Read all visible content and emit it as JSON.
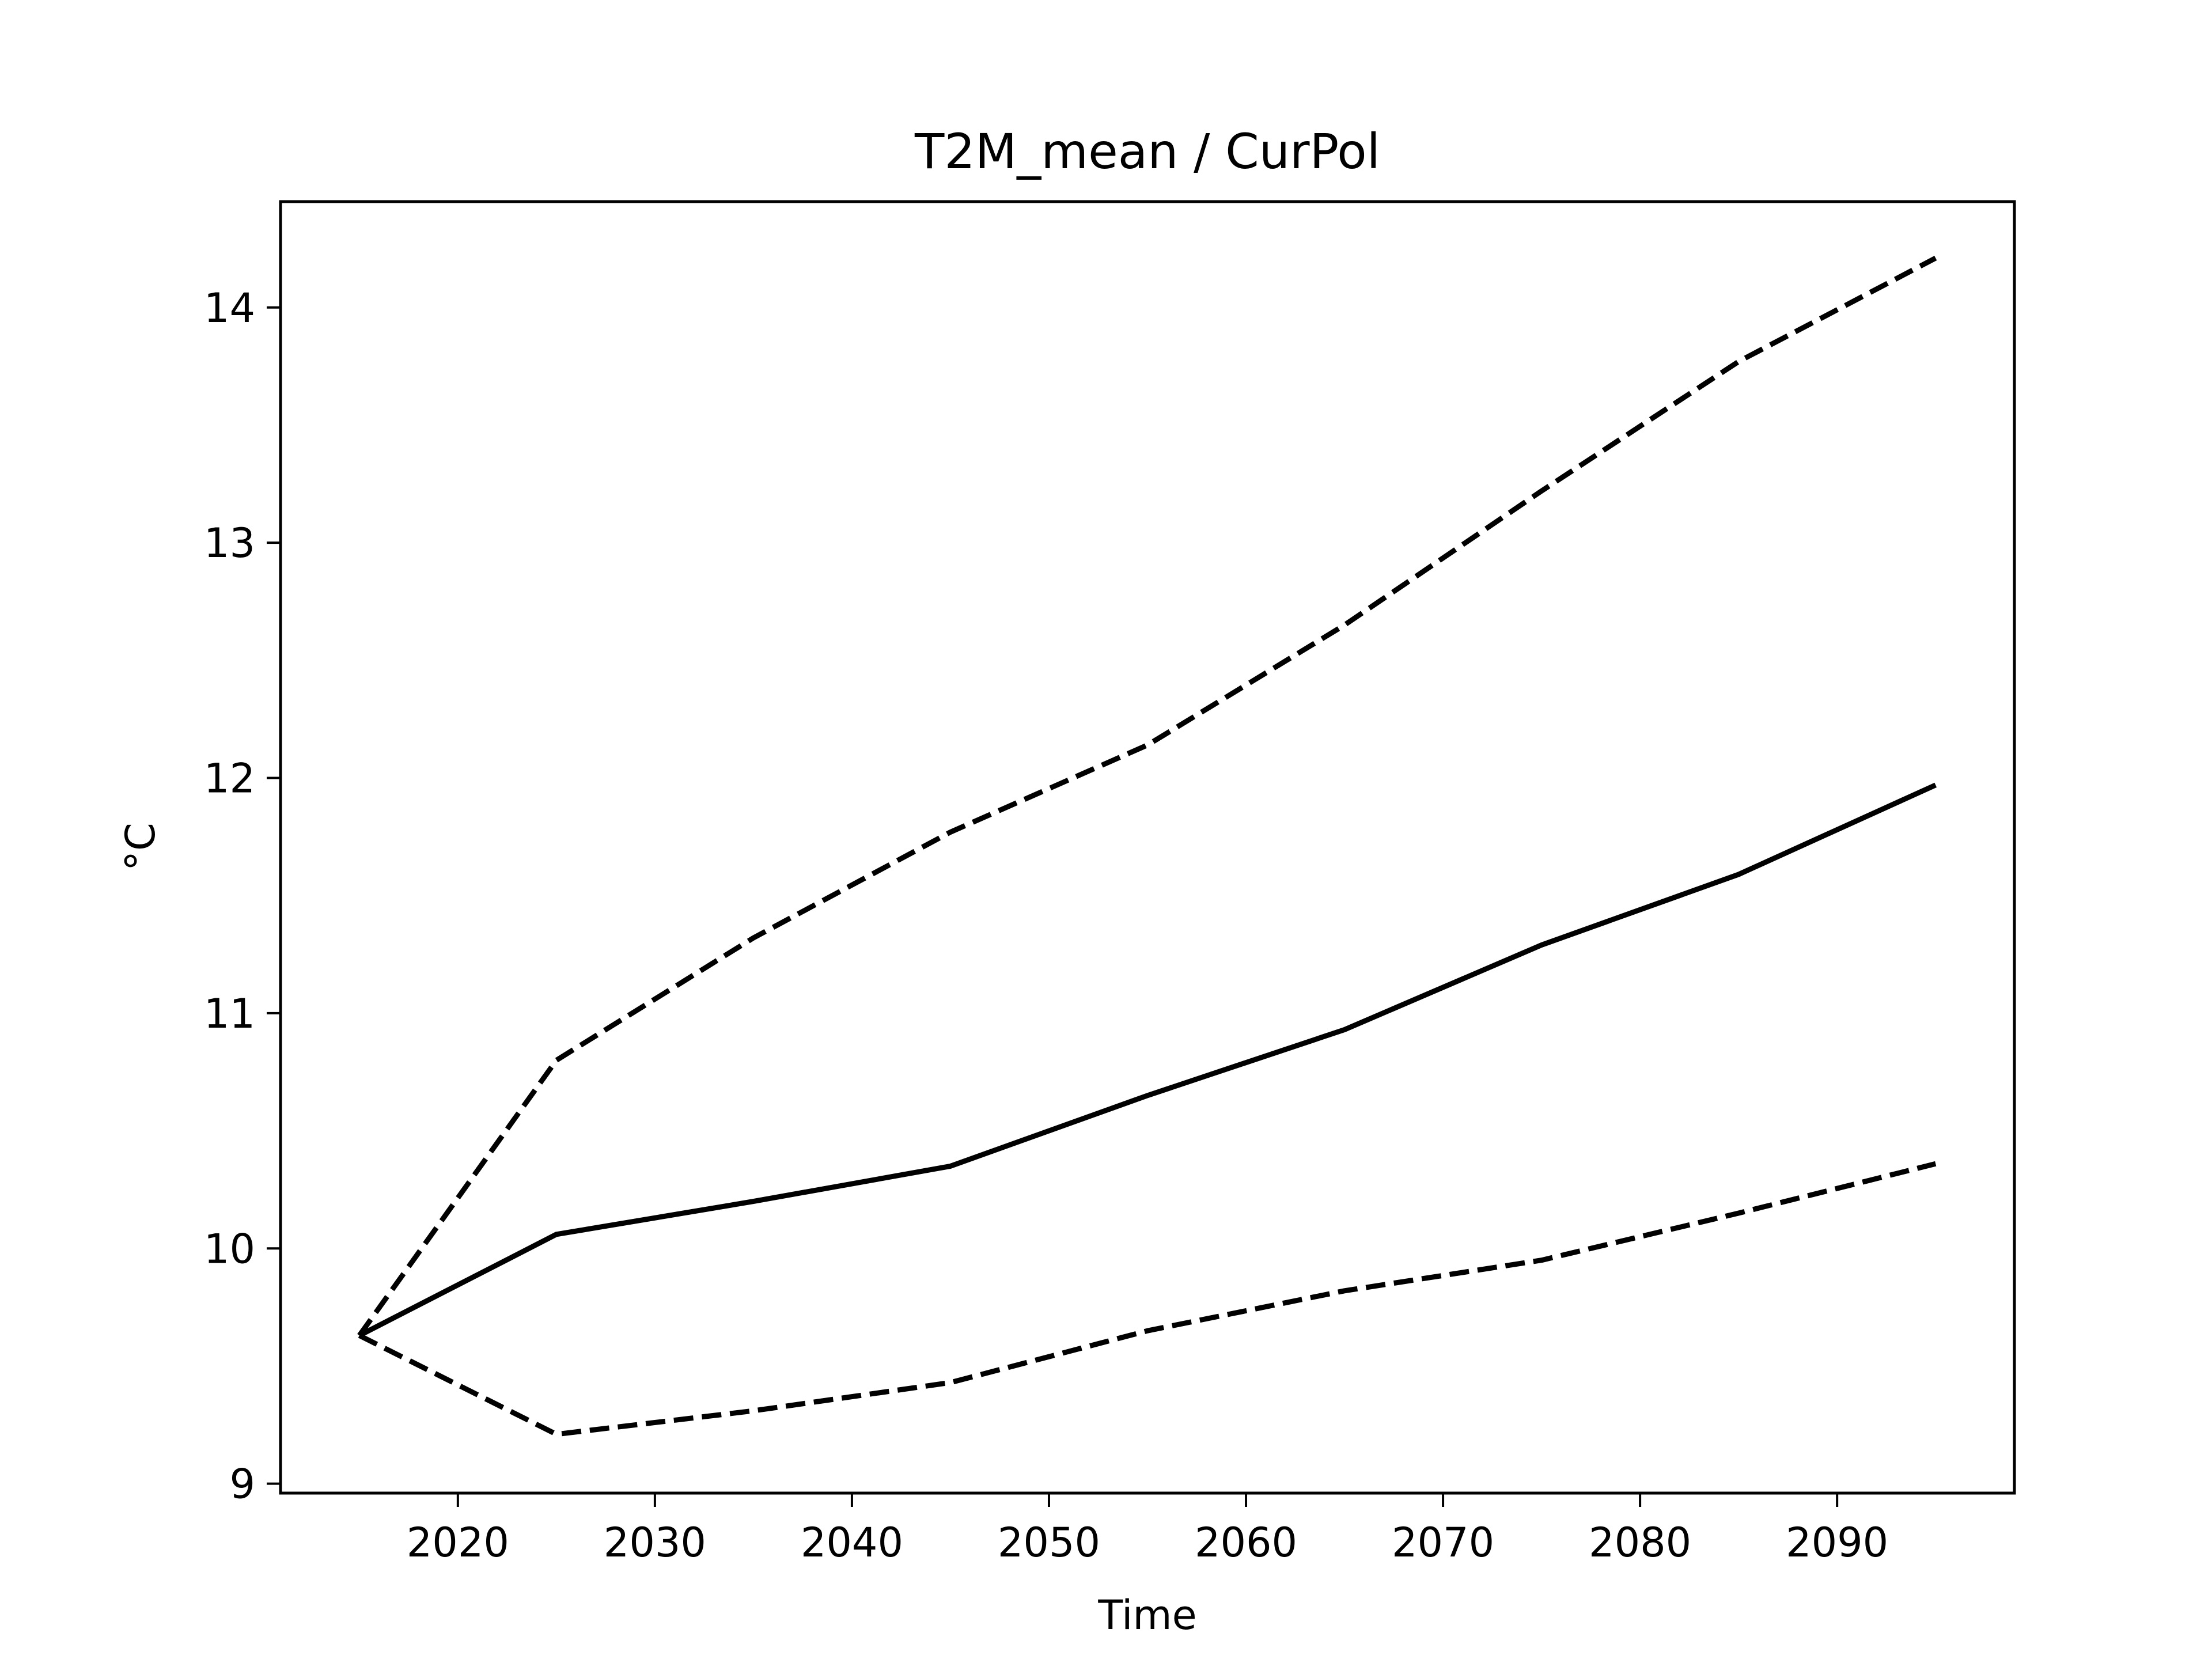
{
  "chart_data": {
    "type": "line",
    "title": "T2M_mean / CurPol",
    "xlabel": "Time",
    "ylabel": "°C",
    "x": [
      2015,
      2025,
      2035,
      2045,
      2055,
      2065,
      2075,
      2085,
      2095
    ],
    "series": [
      {
        "style": "solid",
        "values": [
          9.63,
          10.06,
          10.2,
          10.35,
          10.65,
          10.93,
          11.29,
          11.59,
          11.97
        ]
      },
      {
        "style": "dashed",
        "values": [
          9.63,
          10.8,
          11.32,
          11.77,
          12.14,
          12.65,
          13.22,
          13.77,
          14.21
        ]
      },
      {
        "style": "dashed",
        "values": [
          9.63,
          9.21,
          9.31,
          9.43,
          9.65,
          9.82,
          9.95,
          10.15,
          10.36
        ]
      }
    ],
    "xlim": [
      2011,
      2099
    ],
    "ylim": [
      8.96,
      14.45
    ],
    "xticks": [
      2020,
      2030,
      2040,
      2050,
      2060,
      2070,
      2080,
      2090
    ],
    "yticks": [
      9,
      10,
      11,
      12,
      13,
      14
    ],
    "grid": false,
    "colors": {
      "line": "#000000",
      "axes": "#000000",
      "background": "#ffffff"
    }
  }
}
